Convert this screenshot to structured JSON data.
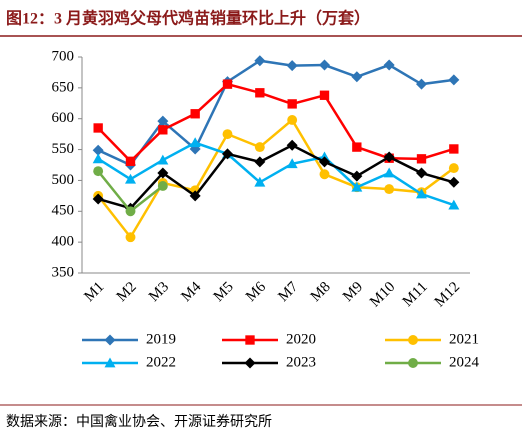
{
  "title": "图12：3 月黄羽鸡父母代鸡苗销量环比上升（万套）",
  "source": "数据来源：中国禽业协会、开源证券研究所",
  "chart_data": {
    "type": "line",
    "categories": [
      "M1",
      "M2",
      "M3",
      "M4",
      "M5",
      "M6",
      "M7",
      "M8",
      "M9",
      "M10",
      "M11",
      "M12"
    ],
    "series": [
      {
        "name": "2019",
        "color": "#2e75b6",
        "marker": "diamond",
        "values": [
          549,
          525,
          596,
          551,
          660,
          694,
          686,
          687,
          668,
          687,
          656,
          663
        ]
      },
      {
        "name": "2020",
        "color": "#ff0000",
        "marker": "square",
        "values": [
          585,
          531,
          582,
          608,
          656,
          642,
          624,
          638,
          554,
          536,
          535,
          551
        ]
      },
      {
        "name": "2021",
        "color": "#ffc000",
        "marker": "circle",
        "values": [
          475,
          408,
          496,
          484,
          575,
          554,
          598,
          510,
          489,
          486,
          481,
          520
        ]
      },
      {
        "name": "2022",
        "color": "#00b0f0",
        "marker": "triangle",
        "values": [
          535,
          502,
          533,
          561,
          543,
          497,
          527,
          538,
          489,
          512,
          478,
          460
        ]
      },
      {
        "name": "2023",
        "color": "#000000",
        "marker": "diamond",
        "values": [
          470,
          455,
          512,
          475,
          543,
          530,
          557,
          530,
          507,
          538,
          512,
          497
        ]
      },
      {
        "name": "2024",
        "color": "#70ad47",
        "marker": "circle",
        "values": [
          515,
          450,
          491,
          null,
          null,
          null,
          null,
          null,
          null,
          null,
          null,
          null
        ]
      }
    ],
    "ylim": [
      350,
      700
    ],
    "yticks": [
      350,
      400,
      450,
      500,
      550,
      600,
      650,
      700
    ],
    "grid": false
  }
}
